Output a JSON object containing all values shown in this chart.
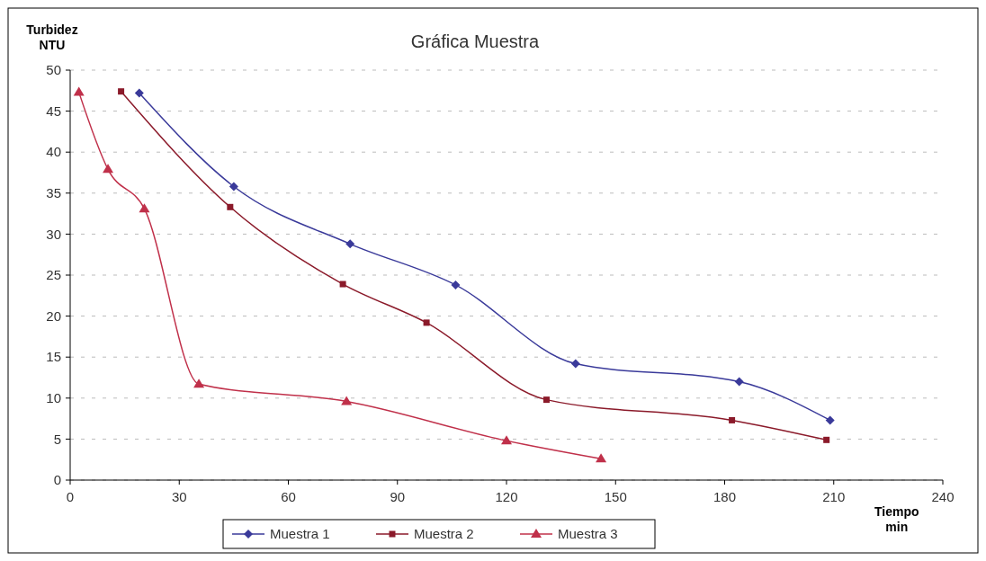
{
  "chart_data": {
    "type": "line",
    "title": "Gráfica Muestra",
    "xlabel": "Tiempo\nmin",
    "ylabel": "Turbidez\nNTU",
    "xlim": [
      0,
      240
    ],
    "xticks": [
      0,
      30,
      60,
      90,
      120,
      150,
      180,
      210,
      240
    ],
    "ylim": [
      0,
      50
    ],
    "yticks": [
      0,
      5,
      10,
      15,
      20,
      25,
      30,
      35,
      40,
      45,
      50
    ],
    "grid": "y",
    "legend": "bottom",
    "series": [
      {
        "name": "Muestra 1",
        "color": "#3a3a9a",
        "marker": "diamond",
        "x": [
          19,
          45,
          77,
          106,
          139,
          184,
          209
        ],
        "values": [
          47.2,
          35.8,
          28.8,
          23.8,
          14.2,
          12,
          7.3
        ]
      },
      {
        "name": "Muestra 2",
        "color": "#8b1a2a",
        "marker": "square",
        "x": [
          14,
          44,
          75,
          98,
          131,
          182,
          208
        ],
        "values": [
          47.4,
          33.3,
          23.9,
          19.2,
          9.8,
          7.3,
          4.9
        ]
      },
      {
        "name": "Muestra 3",
        "color": "#c0304a",
        "marker": "triangle",
        "x": [
          2.4,
          10.4,
          20.4,
          35.4,
          76,
          120,
          146
        ],
        "values": [
          47.3,
          37.9,
          33.1,
          11.7,
          9.6,
          4.8,
          2.6
        ]
      }
    ]
  }
}
